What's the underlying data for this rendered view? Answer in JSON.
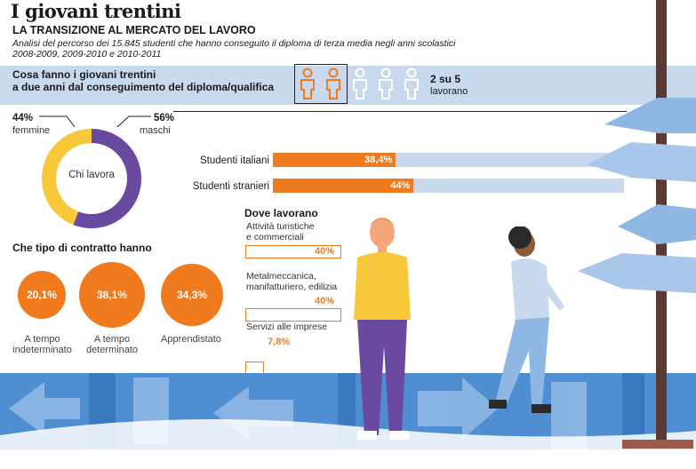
{
  "header": {
    "title": "I giovani trentini",
    "subtitle": "LA TRANSIZIONE AL MERCATO DEL LAVORO",
    "description_1": "Analisi del percorso dei 15.845 studenti che hanno conseguito il diploma di terza media negli anni scolastici",
    "description_2": "2008-2009, 2009-2010 e 2010-2011"
  },
  "question": {
    "line1": "Cosa fanno i giovani trentini",
    "line2": "a due anni dal conseguimento del diploma/qualifica",
    "ratio": "2 su 5",
    "ratio_label": "lavorano"
  },
  "colors": {
    "orange": "#f07a1e",
    "light_blue": "#c8d9ee",
    "purple": "#6a4aa0",
    "yellow": "#f6c83a",
    "blue": "#4f8fd1"
  },
  "chart_data": [
    {
      "type": "pie",
      "title": "Chi lavora",
      "slices": [
        {
          "label": "femmine",
          "value": 44,
          "display": "44%",
          "color": "#f6c83a"
        },
        {
          "label": "maschi",
          "value": 56,
          "display": "56%",
          "color": "#6a4aa0"
        }
      ]
    },
    {
      "type": "bar",
      "categories": [
        "Studenti italiani",
        "Studenti stranieri"
      ],
      "values": [
        38.4,
        44
      ],
      "labels": [
        "38,4%",
        "44%"
      ],
      "xlim": [
        0,
        100
      ]
    },
    {
      "type": "bar",
      "title": "Che tipo di contratto hanno",
      "categories": [
        "A tempo indeterminato",
        "A tempo determinato",
        "Apprendistato"
      ],
      "values": [
        20.1,
        38.1,
        34.3
      ],
      "labels": [
        "20,1%",
        "38,1%",
        "34,3%"
      ],
      "category_lines": [
        [
          "A tempo",
          "indeterminato"
        ],
        [
          "A tempo",
          "determinato"
        ],
        [
          "Apprendistato"
        ]
      ]
    },
    {
      "type": "bar",
      "title": "Dove lavorano",
      "categories": [
        "Attività turistiche e commerciali",
        "Metalmeccanica, manifatturiero, edilizia",
        "Servizi alle imprese"
      ],
      "values": [
        40,
        40,
        7.8
      ],
      "labels": [
        "40%",
        "40%",
        "7,8%"
      ],
      "category_lines": [
        [
          "Attività turistiche",
          "e commerciali"
        ],
        [
          "Metalmeccanica,",
          "manifatturiero, edilizia"
        ],
        [
          "Servizi alle imprese"
        ]
      ],
      "xlim": [
        0,
        100
      ]
    }
  ]
}
